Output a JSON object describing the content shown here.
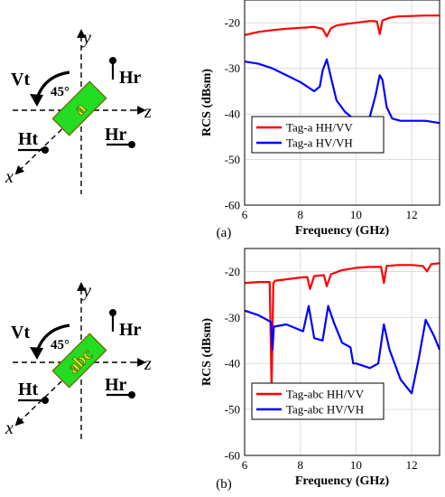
{
  "chart_data": [
    {
      "type": "line",
      "panel": "a",
      "caption": "(a)",
      "xlabel": "Frequency (GHz)",
      "ylabel": "RCS (dBsm)",
      "xlim": [
        6,
        13
      ],
      "ylim": [
        -60,
        -15
      ],
      "xticks": [
        6,
        8,
        10,
        12
      ],
      "yticks": [
        -20,
        -30,
        -40,
        -50,
        -60
      ],
      "grid": true,
      "legend": "bottom-left",
      "series": [
        {
          "name": "Tag-a HH/VV",
          "color": "#ff0000",
          "x": [
            6.0,
            6.5,
            7.0,
            7.5,
            8.0,
            8.5,
            8.8,
            8.95,
            9.1,
            9.3,
            9.6,
            10.0,
            10.5,
            10.75,
            10.85,
            10.95,
            11.2,
            11.5,
            12.0,
            12.5,
            13.0
          ],
          "y": [
            -22.7,
            -22.0,
            -21.6,
            -21.3,
            -21.1,
            -20.9,
            -21.3,
            -23.0,
            -21.2,
            -20.6,
            -20.3,
            -20.0,
            -19.6,
            -19.7,
            -22.5,
            -19.5,
            -18.9,
            -18.6,
            -18.5,
            -18.4,
            -18.4
          ]
        },
        {
          "name": "Tag-a HV/VH",
          "color": "#0000ff",
          "x": [
            6.0,
            6.5,
            7.0,
            7.5,
            8.0,
            8.5,
            8.7,
            8.8,
            8.95,
            9.1,
            9.3,
            9.6,
            10.0,
            10.3,
            10.5,
            10.7,
            10.85,
            10.95,
            11.1,
            11.3,
            11.6,
            12.0,
            12.5,
            13.0
          ],
          "y": [
            -28.5,
            -29.0,
            -30.0,
            -31.5,
            -33.0,
            -35.0,
            -34.0,
            -30.5,
            -28.0,
            -32.0,
            -37.0,
            -39.5,
            -41.5,
            -42.0,
            -40.5,
            -36.0,
            -31.5,
            -32.5,
            -38.5,
            -41.0,
            -41.5,
            -41.5,
            -41.5,
            -42.0
          ]
        }
      ]
    },
    {
      "type": "line",
      "panel": "b",
      "caption": "(b)",
      "xlabel": "Frequency (GHz)",
      "ylabel": "RCS (dBsm)",
      "xlim": [
        6,
        13
      ],
      "ylim": [
        -60,
        -15
      ],
      "xticks": [
        6,
        8,
        10,
        12
      ],
      "yticks": [
        -20,
        -30,
        -40,
        -50,
        -60
      ],
      "grid": true,
      "legend": "bottom-left",
      "series": [
        {
          "name": "Tag-abc HH/VV",
          "color": "#ff0000",
          "x": [
            6.0,
            6.5,
            6.9,
            6.97,
            7.03,
            7.1,
            7.5,
            8.0,
            8.25,
            8.35,
            8.5,
            8.85,
            8.95,
            9.1,
            9.5,
            10.0,
            10.5,
            10.9,
            11.0,
            11.1,
            11.5,
            12.0,
            12.4,
            12.55,
            12.7,
            13.0
          ],
          "y": [
            -22.5,
            -22.3,
            -22.3,
            -46.0,
            -22.5,
            -22.0,
            -21.7,
            -21.3,
            -21.2,
            -23.8,
            -21.0,
            -20.8,
            -23.2,
            -20.6,
            -19.7,
            -19.2,
            -19.0,
            -19.0,
            -22.5,
            -18.8,
            -18.6,
            -18.6,
            -18.8,
            -20.0,
            -18.4,
            -18.2
          ]
        },
        {
          "name": "Tag-abc HV/VH",
          "color": "#0000ff",
          "x": [
            6.0,
            6.5,
            6.95,
            7.0,
            7.05,
            7.5,
            8.1,
            8.3,
            8.5,
            8.8,
            9.0,
            9.2,
            9.5,
            9.8,
            9.9,
            10.0,
            10.5,
            10.8,
            11.0,
            11.2,
            11.6,
            12.0,
            12.25,
            12.5,
            12.8,
            13.0
          ],
          "y": [
            -28.5,
            -29.5,
            -31.0,
            -37.0,
            -32.0,
            -31.5,
            -33.0,
            -27.5,
            -34.5,
            -35.0,
            -27.5,
            -31.0,
            -35.5,
            -36.5,
            -40.0,
            -40.0,
            -41.0,
            -40.0,
            -31.5,
            -37.0,
            -43.5,
            -46.5,
            -39.0,
            -30.5,
            -34.0,
            -37.0
          ]
        }
      ]
    }
  ],
  "diagrams": [
    {
      "panel": "a",
      "tag_text": "a",
      "labels": {
        "vt": "Vt",
        "hr_top": "Hr",
        "ht": "Ht",
        "hr_bottom": "Hr",
        "angle": "45°",
        "axis_y": "y",
        "axis_z": "z",
        "axis_x": "x"
      }
    },
    {
      "panel": "b",
      "tag_text": "abc",
      "labels": {
        "vt": "Vt",
        "hr_top": "Hr",
        "ht": "Ht",
        "hr_bottom": "Hr",
        "angle": "45°",
        "axis_y": "y",
        "axis_z": "z",
        "axis_x": "x"
      }
    }
  ],
  "colors": {
    "tag_fill": "#22dd22",
    "tag_stroke": "#6b6b00",
    "grid": "#dddddd"
  }
}
